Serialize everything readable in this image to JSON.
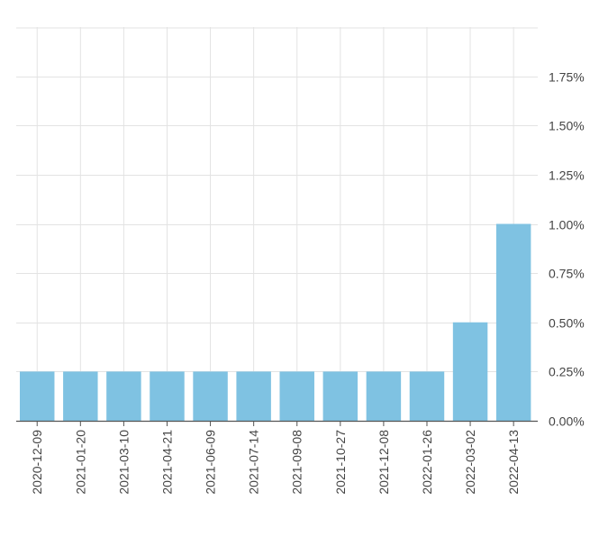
{
  "chart_data": {
    "type": "bar",
    "title": "",
    "xlabel": "",
    "ylabel": "",
    "categories": [
      "2020-12-09",
      "2021-01-20",
      "2021-03-10",
      "2021-04-21",
      "2021-06-09",
      "2021-07-14",
      "2021-09-08",
      "2021-10-27",
      "2021-12-08",
      "2022-01-26",
      "2022-03-02",
      "2022-04-13"
    ],
    "values": [
      0.25,
      0.25,
      0.25,
      0.25,
      0.25,
      0.25,
      0.25,
      0.25,
      0.25,
      0.25,
      0.5,
      1.0
    ],
    "ylim": [
      0,
      2.0
    ],
    "y_ticks": [
      0,
      0.25,
      0.5,
      0.75,
      1.0,
      1.25,
      1.5,
      1.75
    ],
    "y_tick_labels": [
      "0.00%",
      "0.25%",
      "0.50%",
      "0.75%",
      "1.00%",
      "1.25%",
      "1.50%",
      "1.75%"
    ],
    "y_axis_side": "right",
    "grid": true,
    "bar_color": "#7fc2e2",
    "grid_color": "#e3e3e3",
    "axis_color": "#555555"
  }
}
